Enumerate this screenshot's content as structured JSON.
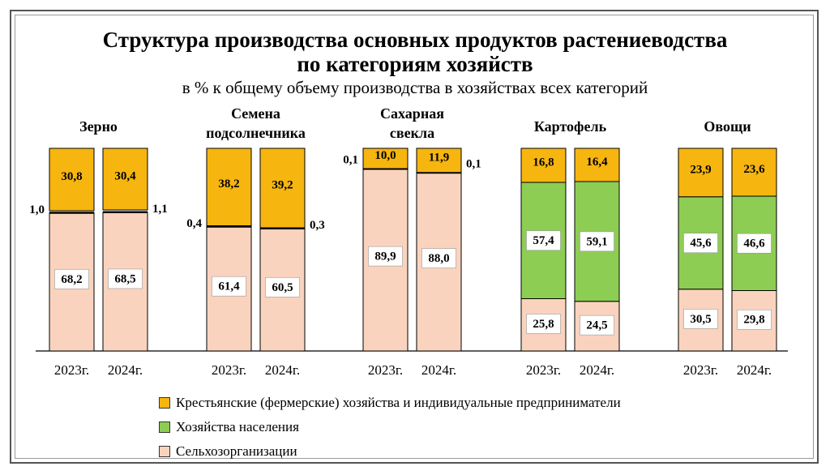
{
  "title_line1": "Структура производства основных продуктов растениеводства",
  "title_line2": "по категориям хозяйств",
  "subtitle": "в % к общему объему производства  в хозяйствах  всех категорий",
  "colors": {
    "farmers": "#F6B50F",
    "households": "#8DCD54",
    "agro_orgs": "#FAD3BE"
  },
  "legend": [
    {
      "key": "farmers",
      "label": "Крестьянские (фермерские) хозяйства и индивидуальные предприниматели"
    },
    {
      "key": "households",
      "label": "Хозяйства населения"
    },
    {
      "key": "agro_orgs",
      "label": "Сельхозорганизации"
    }
  ],
  "chart_data": {
    "type": "bar",
    "stacked": true,
    "ylim": [
      0,
      100
    ],
    "unit": "%",
    "groups": [
      {
        "label": [
          "Зерно"
        ],
        "years": [
          "2023г.",
          "2024г."
        ],
        "agro_orgs": [
          68.2,
          68.5
        ],
        "households": [
          1.0,
          1.1
        ],
        "farmers": [
          30.8,
          30.4
        ],
        "labels": {
          "agro_orgs": [
            "68,2",
            "68,5"
          ],
          "households": [
            "1,0",
            "1,1"
          ],
          "farmers": [
            "30,8",
            "30,4"
          ]
        }
      },
      {
        "label": [
          "Семена",
          "подсолнечника"
        ],
        "years": [
          "2023г.",
          "2024г."
        ],
        "agro_orgs": [
          61.4,
          60.5
        ],
        "households": [
          0.4,
          0.3
        ],
        "farmers": [
          38.2,
          39.2
        ],
        "labels": {
          "agro_orgs": [
            "61,4",
            "60,5"
          ],
          "households": [
            "0,4",
            "0,3"
          ],
          "farmers": [
            "38,2",
            "39,2"
          ]
        }
      },
      {
        "label": [
          "Сахарная",
          "свекла"
        ],
        "years": [
          "2023г.",
          "2024г."
        ],
        "agro_orgs": [
          89.9,
          88.0
        ],
        "households": [
          0.1,
          0.1
        ],
        "farmers": [
          10.0,
          11.9
        ],
        "labels": {
          "agro_orgs": [
            "89,9",
            "88,0"
          ],
          "households": [
            "0,1",
            "0,1"
          ],
          "farmers": [
            "10,0",
            "11,9"
          ]
        }
      },
      {
        "label": [
          "Картофель"
        ],
        "years": [
          "2023г.",
          "2024г."
        ],
        "agro_orgs": [
          25.8,
          24.5
        ],
        "households": [
          57.4,
          59.1
        ],
        "farmers": [
          16.8,
          16.4
        ],
        "labels": {
          "agro_orgs": [
            "25,8",
            "24,5"
          ],
          "households": [
            "57,4",
            "59,1"
          ],
          "farmers": [
            "16,8",
            "16,4"
          ]
        }
      },
      {
        "label": [
          "Овощи"
        ],
        "years": [
          "2023г.",
          "2024г."
        ],
        "agro_orgs": [
          30.5,
          29.8
        ],
        "households": [
          45.6,
          46.6
        ],
        "farmers": [
          23.9,
          23.6
        ],
        "labels": {
          "agro_orgs": [
            "30,5",
            "29,8"
          ],
          "households": [
            "45,6",
            "46,6"
          ],
          "farmers": [
            "23,9",
            "23,6"
          ]
        }
      }
    ]
  }
}
